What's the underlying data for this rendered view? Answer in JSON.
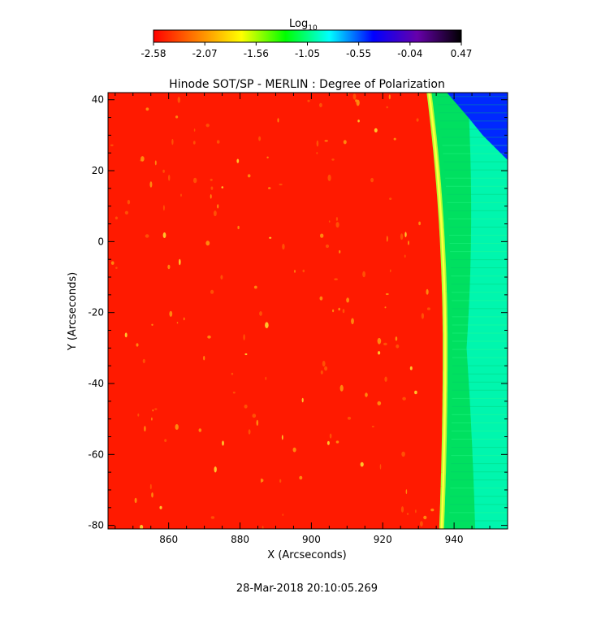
{
  "colorbar": {
    "label": "Log",
    "label_subscript": "10",
    "ticks": [
      "-2.58",
      "-2.07",
      "-1.56",
      "-1.05",
      "-0.55",
      "-0.04",
      "0.47"
    ],
    "range": [
      -2.58,
      0.47
    ],
    "colormap": [
      "#ff0000",
      "#ff8000",
      "#ffff00",
      "#00ff00",
      "#00ffff",
      "#0000ff",
      "#6600aa",
      "#000000"
    ]
  },
  "chart_data": {
    "type": "heatmap",
    "title": "Hinode SOT/SP - MERLIN : Degree of Polarization",
    "xlabel": "X (Arcseconds)",
    "ylabel": "Y (Arcseconds)",
    "xlim": [
      843,
      955
    ],
    "ylim": [
      -81,
      42
    ],
    "x_ticks": [
      860,
      880,
      900,
      920,
      940
    ],
    "y_ticks": [
      40,
      20,
      0,
      -20,
      -40,
      -60,
      -80
    ],
    "value_units": "log10 degree of polarization",
    "regions": [
      {
        "name": "disk",
        "color": "#ff1a00",
        "approx_log10": -2.5
      },
      {
        "name": "limb",
        "color": "#ffff33",
        "approx_log10": -1.8
      },
      {
        "name": "off-limb",
        "color": "#00e060",
        "approx_log10": -1.0
      },
      {
        "name": "corner",
        "color": "#0020ff",
        "approx_log10": -0.3
      }
    ],
    "limb_x_top": 933,
    "limb_x_bottom": 936.5,
    "limb_x_max": 937.5,
    "limb_x_max_at_y": -30
  },
  "timestamp": "28-Mar-2018 20:10:05.269"
}
